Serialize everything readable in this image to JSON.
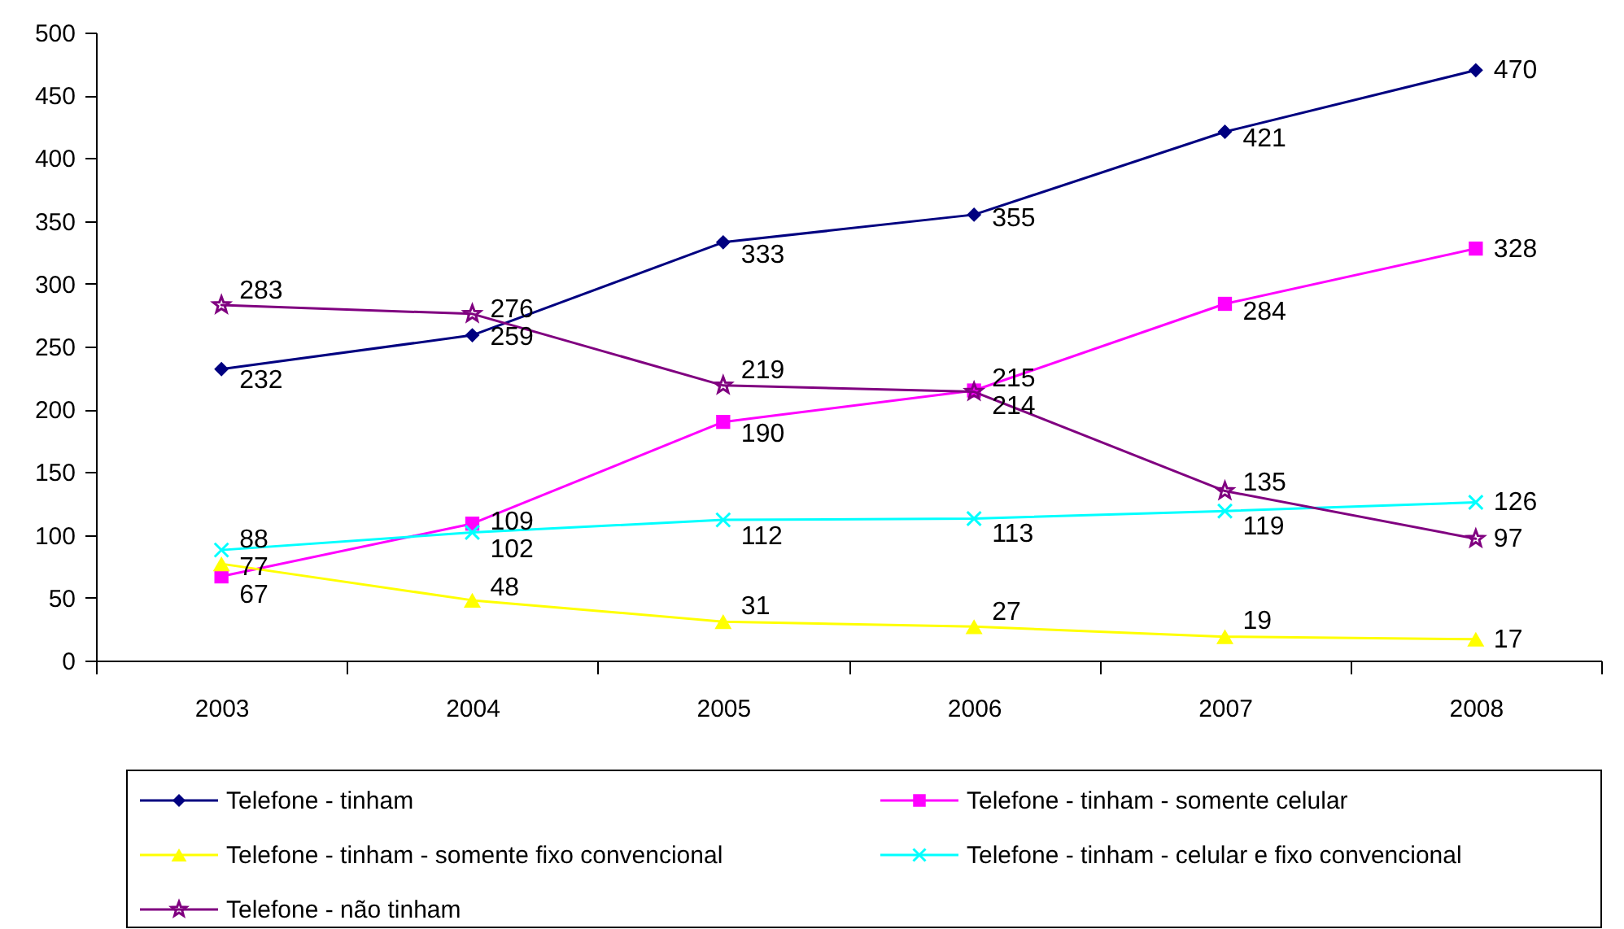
{
  "chart_data": {
    "type": "line",
    "categories": [
      "2003",
      "2004",
      "2005",
      "2006",
      "2007",
      "2008"
    ],
    "ylim": [
      0,
      500
    ],
    "yticks": [
      0,
      50,
      100,
      150,
      200,
      250,
      300,
      350,
      400,
      450,
      500
    ],
    "grid": false,
    "legend": "bottom",
    "data_labels": true,
    "series": [
      {
        "name": "Telefone - tinham",
        "color": "#000080",
        "marker": "diamond",
        "values": [
          232,
          259,
          333,
          355,
          421,
          470
        ]
      },
      {
        "name": "Telefone - tinham - somente celular",
        "color": "#ff00ff",
        "marker": "square",
        "values": [
          67,
          109,
          190,
          215,
          284,
          328
        ]
      },
      {
        "name": "Telefone - tinham - somente fixo convencional",
        "color": "#ffff00",
        "marker": "triangle",
        "values": [
          77,
          48,
          31,
          27,
          19,
          17
        ]
      },
      {
        "name": "Telefone - tinham - celular e fixo convencional",
        "color": "#00ffff",
        "marker": "cross",
        "values": [
          88,
          102,
          112,
          113,
          119,
          126
        ]
      },
      {
        "name": "Telefone - não tinham",
        "color": "#800080",
        "marker": "star",
        "values": [
          283,
          276,
          219,
          214,
          135,
          97
        ]
      }
    ]
  }
}
